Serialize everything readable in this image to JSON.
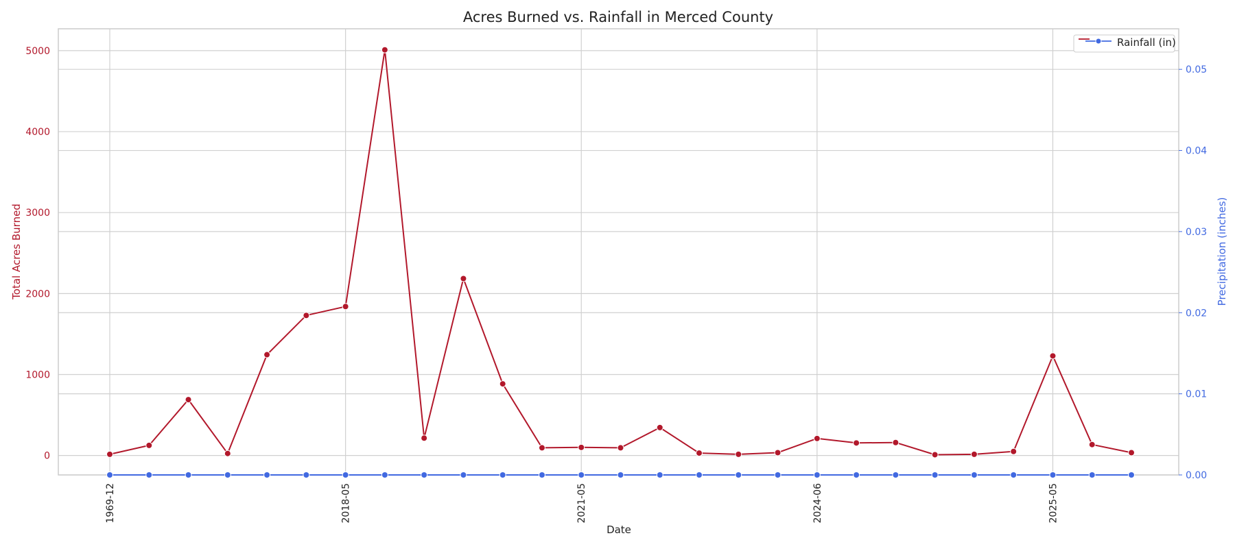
{
  "chart_data": {
    "type": "line",
    "title": "Acres Burned vs. Rainfall in Merced County",
    "xlabel": "Date",
    "x_tick_labels": [
      "1969-12",
      "2018-05",
      "2021-05",
      "2024-06",
      "2025-05"
    ],
    "x_tick_positions": [
      0,
      6,
      12,
      18,
      24
    ],
    "n_points": 27,
    "ylabel_left": "Total Acres Burned",
    "ylabel_right": "Precipitation (inches)",
    "ylim_left": [
      -240,
      5270
    ],
    "ylim_right": [
      0,
      0.055
    ],
    "yticks_left": [
      0,
      1000,
      2000,
      3000,
      4000,
      5000
    ],
    "yticks_right": [
      "0.00",
      "0.01",
      "0.02",
      "0.03",
      "0.04",
      "0.05"
    ],
    "grid": true,
    "legend_position": "top-right",
    "series": [
      {
        "name": "",
        "axis": "left",
        "color": "#b2182b",
        "values": [
          15,
          125,
          690,
          25,
          1245,
          1730,
          1840,
          5010,
          215,
          2185,
          885,
          95,
          100,
          95,
          345,
          30,
          15,
          35,
          210,
          155,
          160,
          10,
          15,
          50,
          1230,
          135,
          35
        ]
      },
      {
        "name": "Rainfall (in)",
        "axis": "right",
        "color": "#4169e1",
        "values": [
          0,
          0,
          0,
          0,
          0,
          0,
          0,
          0,
          0,
          0,
          0,
          0,
          0,
          0,
          0,
          0,
          0,
          0,
          0,
          0,
          0,
          0,
          0,
          0,
          0,
          0,
          0
        ]
      }
    ],
    "colors": {
      "left_axis": "#b2182b",
      "right_axis": "#4169e1",
      "grid": "#d0d0d0",
      "frame": "#cccccc"
    }
  }
}
